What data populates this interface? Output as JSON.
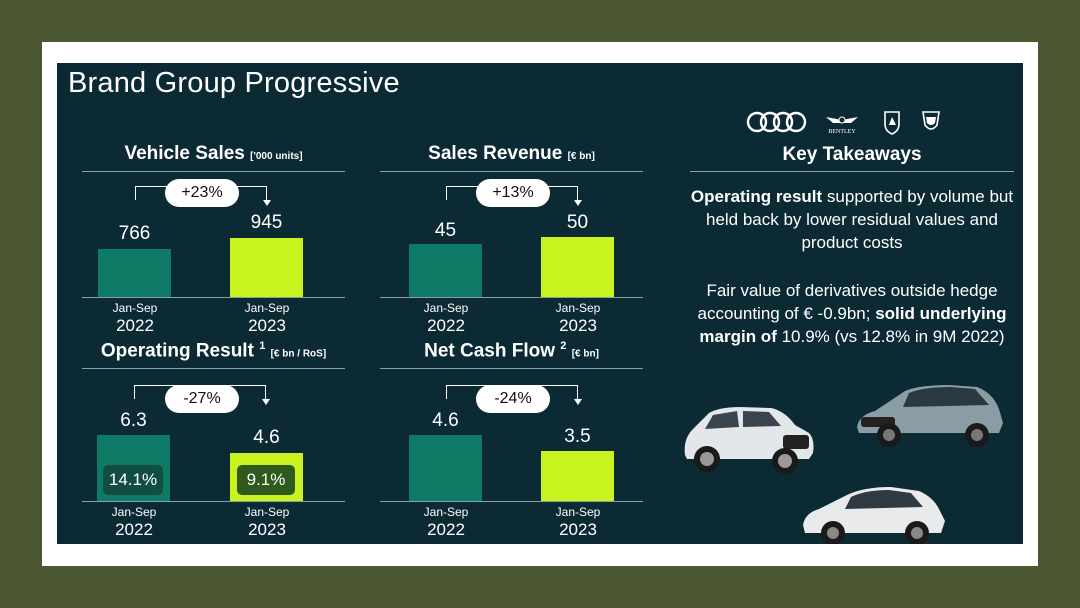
{
  "slide": {
    "title": "Brand Group Progressive",
    "corner_text": "...... "
  },
  "vehicle_sales": {
    "title": "Vehicle Sales",
    "unit": "['000 units]",
    "change": "+23%",
    "prev": {
      "value": "766",
      "period": "Jan-Sep",
      "year": "2022",
      "num": 766
    },
    "curr": {
      "value": "945",
      "period": "Jan-Sep",
      "year": "2023",
      "num": 945
    }
  },
  "sales_revenue": {
    "title": "Sales Revenue",
    "unit": "[€ bn]",
    "change": "+13%",
    "prev": {
      "value": "45",
      "period": "Jan-Sep",
      "year": "2022",
      "num": 45
    },
    "curr": {
      "value": "50",
      "period": "Jan-Sep",
      "year": "2023",
      "num": 50
    }
  },
  "operating_result": {
    "title": "Operating Result",
    "footnote": "1",
    "unit": "[€ bn / RoS]",
    "change": "-27%",
    "prev": {
      "value": "6.3",
      "ros": "14.1%",
      "period": "Jan-Sep",
      "year": "2022",
      "num": 6.3
    },
    "curr": {
      "value": "4.6",
      "ros": "9.1%",
      "period": "Jan-Sep",
      "year": "2023",
      "num": 4.6
    }
  },
  "net_cash_flow": {
    "title": "Net Cash Flow",
    "footnote": "2",
    "unit": "[€ bn]",
    "change": "-24%",
    "prev": {
      "value": "4.6",
      "period": "Jan-Sep",
      "year": "2022",
      "num": 4.6
    },
    "curr": {
      "value": "3.5",
      "period": "Jan-Sep",
      "year": "2023",
      "num": 3.5
    }
  },
  "key_takeaways": {
    "title": "Key Takeaways",
    "p1_bold": "Operating result",
    "p1_rest": " supported by volume but held back by lower residual values and product costs",
    "p2_start": "Fair value of derivatives outside hedge accounting of € -0.9bn; ",
    "p2_bold": "solid underlying margin of",
    "p2_end": " 10.9% (vs 12.8% in 9M 2022)"
  },
  "logos": {
    "bentley_text": "BENTLEY"
  },
  "colors": {
    "background": "#0b2a33",
    "prev_bar": "#0d7a66",
    "curr_bar": "#c8f31e"
  }
}
